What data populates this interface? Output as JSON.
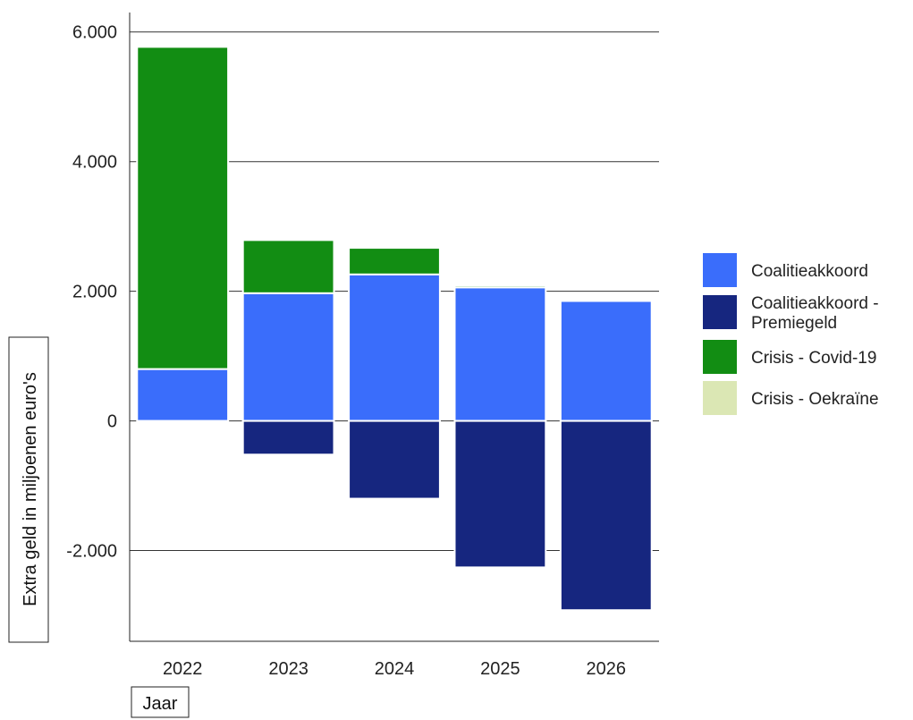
{
  "chart_data": {
    "type": "bar",
    "stacked": true,
    "diverging": true,
    "categories": [
      "2022",
      "2023",
      "2024",
      "2025",
      "2026"
    ],
    "series": [
      {
        "name": "Coalitieakkoord",
        "color": "#3a6dfb",
        "values": [
          800,
          1970,
          2260,
          2060,
          1850
        ]
      },
      {
        "name": "Coalitieakkoord - Premiegeld",
        "color": "#16267f",
        "values": [
          0,
          -520,
          -1200,
          -2260,
          -2920
        ]
      },
      {
        "name": "Crisis - Covid-19",
        "color": "#128d13",
        "values": [
          4970,
          820,
          410,
          30,
          0
        ]
      },
      {
        "name": "Crisis - Oekraïne",
        "color": "#dbe7b4",
        "values": [
          0,
          0,
          0,
          0,
          0
        ]
      }
    ],
    "ylim": [
      -3400,
      6300
    ],
    "yticks": [
      -2000,
      0,
      2000,
      4000,
      6000
    ],
    "ytick_labels": [
      "-2.000",
      "0",
      "2.000",
      "4.000",
      "6.000"
    ],
    "xlabel": "Jaar",
    "ylabel": "Extra geld in miljoenen euro's",
    "title": "",
    "grid": true,
    "legend_position": "right",
    "legend": {
      "entries": [
        {
          "lines": [
            "Coalitieakkoord"
          ],
          "color": "#3a6dfb"
        },
        {
          "lines": [
            "Coalitieakkoord -",
            "Premiegeld"
          ],
          "color": "#16267f"
        },
        {
          "lines": [
            "Crisis - Covid-19"
          ],
          "color": "#128d13"
        },
        {
          "lines": [
            "Crisis - Oekraïne"
          ],
          "color": "#dbe7b4"
        }
      ]
    }
  }
}
